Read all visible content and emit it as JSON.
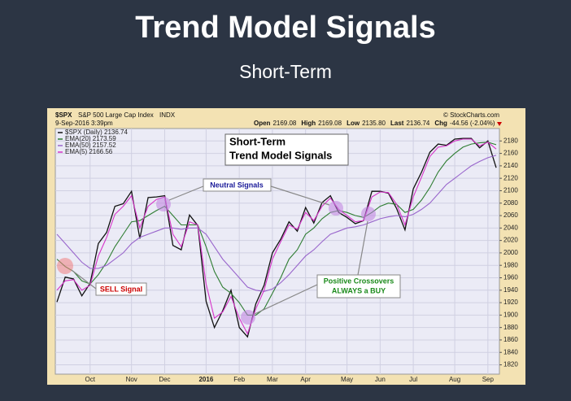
{
  "slide": {
    "title": "Trend Model Signals",
    "subtitle": "Short-Term"
  },
  "chart_data": {
    "type": "line",
    "header": {
      "symbol": "$SPX",
      "name": "S&P 500 Large Cap Index",
      "exchange": "INDX",
      "date": "9-Sep-2016 3:39pm",
      "source": "© StockCharts.com",
      "quote": [
        {
          "label": "Open",
          "value": "2169.08"
        },
        {
          "label": "High",
          "value": "2169.08"
        },
        {
          "label": "Low",
          "value": "2135.80"
        },
        {
          "label": "Last",
          "value": "2136.74"
        },
        {
          "label": "Chg",
          "value": "-44.56 (-2.04%)"
        }
      ]
    },
    "annotations": {
      "title_box": [
        "Short-Term",
        "Trend Model Signals"
      ],
      "neutral": "Neutral Signals",
      "sell": "SELL Signal",
      "buy": [
        "Positive Crossovers",
        "ALWAYS a BUY"
      ]
    },
    "categories": [
      null,
      null,
      null,
      null,
      "Oct",
      null,
      null,
      null,
      null,
      "Nov",
      null,
      null,
      null,
      "Dec",
      null,
      null,
      null,
      null,
      "2016",
      null,
      null,
      null,
      "Feb",
      null,
      null,
      null,
      "Mar",
      null,
      null,
      null,
      "Apr",
      null,
      null,
      null,
      null,
      "May",
      null,
      null,
      null,
      "Jun",
      null,
      null,
      null,
      "Jul",
      null,
      null,
      null,
      null,
      "Aug",
      null,
      null,
      null,
      "Sep",
      null
    ],
    "series": [
      {
        "name": "$SPX (Daily) 2136.74",
        "color": "#111111",
        "values": [
          1921,
          1961,
          1958,
          1931,
          1951,
          2015,
          2033,
          2075,
          2079,
          2099,
          2023,
          2089,
          2090,
          2092,
          2012,
          2005,
          2061,
          2044,
          1922,
          1880,
          1907,
          1940,
          1880,
          1865,
          1918,
          1948,
          2000,
          2022,
          2050,
          2035,
          2073,
          2048,
          2081,
          2092,
          2065,
          2057,
          2047,
          2052,
          2099,
          2099,
          2096,
          2071,
          2037,
          2103,
          2130,
          2162,
          2175,
          2173,
          2183,
          2184,
          2184,
          2169,
          2180,
          2137
        ]
      },
      {
        "name": "EMA(20) 2173.59",
        "color": "#2e7d32",
        "values": [
          1990,
          1978,
          1970,
          1955,
          1950,
          1965,
          1985,
          2010,
          2030,
          2050,
          2052,
          2060,
          2068,
          2075,
          2060,
          2045,
          2045,
          2045,
          2010,
          1970,
          1945,
          1935,
          1920,
          1900,
          1900,
          1910,
          1935,
          1960,
          1990,
          2005,
          2030,
          2040,
          2055,
          2065,
          2068,
          2065,
          2060,
          2057,
          2065,
          2075,
          2080,
          2078,
          2065,
          2070,
          2085,
          2105,
          2130,
          2148,
          2160,
          2170,
          2175,
          2177,
          2178,
          2174
        ]
      },
      {
        "name": "EMA(50) 2157.52",
        "color": "#9966cc",
        "values": [
          2030,
          2015,
          2000,
          1985,
          1975,
          1975,
          1980,
          1990,
          2000,
          2015,
          2025,
          2030,
          2035,
          2040,
          2040,
          2038,
          2040,
          2040,
          2030,
          2010,
          1990,
          1975,
          1960,
          1945,
          1940,
          1938,
          1942,
          1952,
          1965,
          1980,
          1995,
          2005,
          2018,
          2030,
          2035,
          2040,
          2042,
          2045,
          2050,
          2055,
          2058,
          2060,
          2058,
          2062,
          2070,
          2080,
          2095,
          2110,
          2120,
          2130,
          2140,
          2147,
          2153,
          2157
        ]
      },
      {
        "name": "EMA(5) 2166.56",
        "color": "#d633c9",
        "values": [
          1940,
          1955,
          1957,
          1940,
          1948,
          1995,
          2025,
          2062,
          2075,
          2092,
          2040,
          2075,
          2086,
          2090,
          2030,
          2010,
          2050,
          2045,
          1950,
          1895,
          1905,
          1930,
          1895,
          1870,
          1910,
          1940,
          1990,
          2018,
          2045,
          2038,
          2065,
          2052,
          2075,
          2088,
          2070,
          2060,
          2050,
          2052,
          2090,
          2098,
          2097,
          2078,
          2045,
          2090,
          2122,
          2155,
          2170,
          2172,
          2180,
          2183,
          2183,
          2172,
          2178,
          2167
        ]
      }
    ],
    "ylim": [
      1805,
      2200
    ],
    "yticks": [
      1820,
      1840,
      1860,
      1880,
      1900,
      1920,
      1940,
      1960,
      1980,
      2000,
      2020,
      2040,
      2060,
      2080,
      2100,
      2120,
      2140,
      2160,
      2180
    ],
    "grid": true
  }
}
